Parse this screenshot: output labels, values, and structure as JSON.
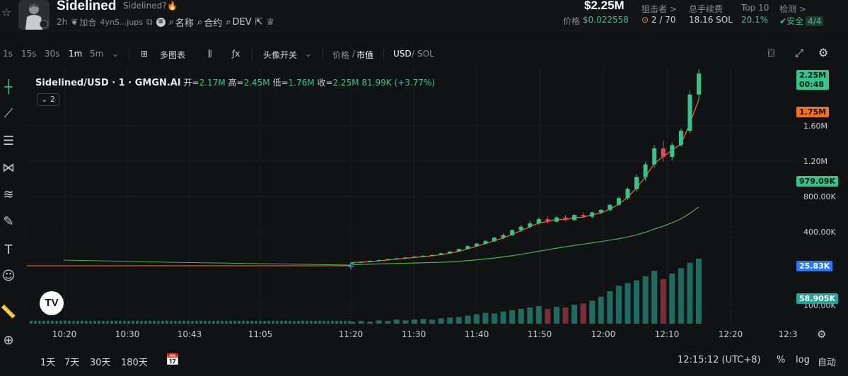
{
  "header": {
    "token_name": "Sidelined",
    "token_subtitle": "Sidelined?",
    "age": "2h",
    "add_label": "加合",
    "address_short": "4ynS...jups",
    "name_label": "名称",
    "contract_label": "合约",
    "dev_label": "DEV",
    "market_cap": "$2.25M",
    "price_label": "价格",
    "price_value": "$0.022558",
    "snipers_label": "狙击者 >",
    "snipers_value": "2 / 70",
    "fees_label": "总手续费",
    "fees_value": "18.16 SOL",
    "top10_label": "Top 10",
    "top10_value": "20.1%",
    "detect_label": "检测 >",
    "detect_value": "安全",
    "detect_badge": "4/4"
  },
  "toolbar": {
    "intervals": [
      "1s",
      "15s",
      "30s",
      "1m",
      "5m"
    ],
    "active_interval": "1m",
    "multi_chart": "多图表",
    "avatar_toggle": "头像开关",
    "price_label": "价格",
    "mcap_label": "市值",
    "currency_usd": "USD",
    "currency_sol": "SOL"
  },
  "legend": {
    "symbol": "Sidelined/USD · 1 · GMGN.AI",
    "open_label": "开=",
    "open": "2.17M",
    "high_label": "高=",
    "high": "2.45M",
    "low_label": "低=",
    "low": "1.76M",
    "close_label": "收=",
    "close": "2.25M",
    "change": "81.99K (+3.77%)",
    "collapse_count": "2"
  },
  "price_axis": {
    "ticks": [
      "1.60M",
      "1.20M",
      "800.00K",
      "400.00K",
      "100.00K"
    ],
    "tag_last_price": "2.25M",
    "tag_countdown": "00:48",
    "tag_ma_fast": "1.75M",
    "tag_ma_slow": "979.09K",
    "tag_vol_a": "25.83K",
    "tag_vol_b": "58.905K"
  },
  "time_axis": {
    "ticks": [
      "10:20",
      "10:30",
      "10:43",
      "11:05",
      "11:20",
      "11:30",
      "11:40",
      "11:50",
      "12:00",
      "12:10",
      "12:20",
      "12:3"
    ]
  },
  "bottom_bar": {
    "ranges": [
      "1天",
      "7天",
      "30天",
      "180天"
    ],
    "clock": "12:15:12 (UTC+8)",
    "percent": "%",
    "log": "log",
    "auto": "自动"
  },
  "colors": {
    "up": "#35c48c",
    "down": "#e5475c",
    "ma_fast": "#f6701f",
    "ma_slow": "#4caf50",
    "background": "#111214"
  },
  "chart_data": {
    "type": "candlestick",
    "time_labels": [
      "11:20",
      "11:30",
      "11:40",
      "11:50",
      "12:00",
      "12:10"
    ],
    "candles": [
      {
        "o": 10,
        "h": 12,
        "l": 8,
        "c": 11
      },
      {
        "o": 11,
        "h": 14,
        "l": 10,
        "c": 13
      },
      {
        "o": 13,
        "h": 16,
        "l": 12,
        "c": 15
      },
      {
        "o": 15,
        "h": 18,
        "l": 14,
        "c": 17
      },
      {
        "o": 17,
        "h": 20,
        "l": 16,
        "c": 19
      },
      {
        "o": 19,
        "h": 22,
        "l": 18,
        "c": 21
      },
      {
        "o": 21,
        "h": 24,
        "l": 20,
        "c": 23
      },
      {
        "o": 23,
        "h": 26,
        "l": 22,
        "c": 25
      },
      {
        "o": 25,
        "h": 28,
        "l": 24,
        "c": 27
      },
      {
        "o": 27,
        "h": 30,
        "l": 26,
        "c": 29
      },
      {
        "o": 29,
        "h": 34,
        "l": 28,
        "c": 33
      },
      {
        "o": 33,
        "h": 38,
        "l": 32,
        "c": 37
      },
      {
        "o": 37,
        "h": 44,
        "l": 36,
        "c": 43
      },
      {
        "o": 43,
        "h": 52,
        "l": 42,
        "c": 50
      },
      {
        "o": 50,
        "h": 58,
        "l": 48,
        "c": 56
      },
      {
        "o": 56,
        "h": 64,
        "l": 54,
        "c": 62
      },
      {
        "o": 62,
        "h": 72,
        "l": 60,
        "c": 70
      },
      {
        "o": 70,
        "h": 80,
        "l": 66,
        "c": 76
      },
      {
        "o": 76,
        "h": 90,
        "l": 74,
        "c": 88
      },
      {
        "o": 88,
        "h": 100,
        "l": 84,
        "c": 96
      },
      {
        "o": 96,
        "h": 110,
        "l": 92,
        "c": 104
      },
      {
        "o": 104,
        "h": 118,
        "l": 100,
        "c": 114
      },
      {
        "o": 114,
        "h": 120,
        "l": 104,
        "c": 108
      },
      {
        "o": 108,
        "h": 122,
        "l": 106,
        "c": 118
      },
      {
        "o": 118,
        "h": 124,
        "l": 110,
        "c": 112
      },
      {
        "o": 112,
        "h": 126,
        "l": 110,
        "c": 124
      },
      {
        "o": 124,
        "h": 130,
        "l": 118,
        "c": 120
      },
      {
        "o": 120,
        "h": 132,
        "l": 116,
        "c": 130
      },
      {
        "o": 130,
        "h": 138,
        "l": 126,
        "c": 136
      },
      {
        "o": 136,
        "h": 150,
        "l": 132,
        "c": 148
      },
      {
        "o": 148,
        "h": 168,
        "l": 146,
        "c": 164
      },
      {
        "o": 164,
        "h": 190,
        "l": 160,
        "c": 186
      },
      {
        "o": 186,
        "h": 220,
        "l": 180,
        "c": 214
      },
      {
        "o": 214,
        "h": 250,
        "l": 206,
        "c": 244
      },
      {
        "o": 244,
        "h": 290,
        "l": 236,
        "c": 282
      },
      {
        "o": 282,
        "h": 300,
        "l": 250,
        "c": 262
      },
      {
        "o": 262,
        "h": 296,
        "l": 254,
        "c": 290
      },
      {
        "o": 290,
        "h": 330,
        "l": 286,
        "c": 324
      },
      {
        "o": 324,
        "h": 420,
        "l": 318,
        "c": 410
      },
      {
        "o": 410,
        "h": 470,
        "l": 398,
        "c": 460
      }
    ],
    "volume": [
      3,
      4,
      3,
      5,
      4,
      6,
      5,
      6,
      7,
      6,
      8,
      9,
      10,
      12,
      14,
      16,
      15,
      18,
      20,
      22,
      24,
      26,
      22,
      25,
      24,
      28,
      30,
      34,
      40,
      48,
      56,
      60,
      64,
      70,
      78,
      66,
      74,
      82,
      90,
      96
    ]
  }
}
